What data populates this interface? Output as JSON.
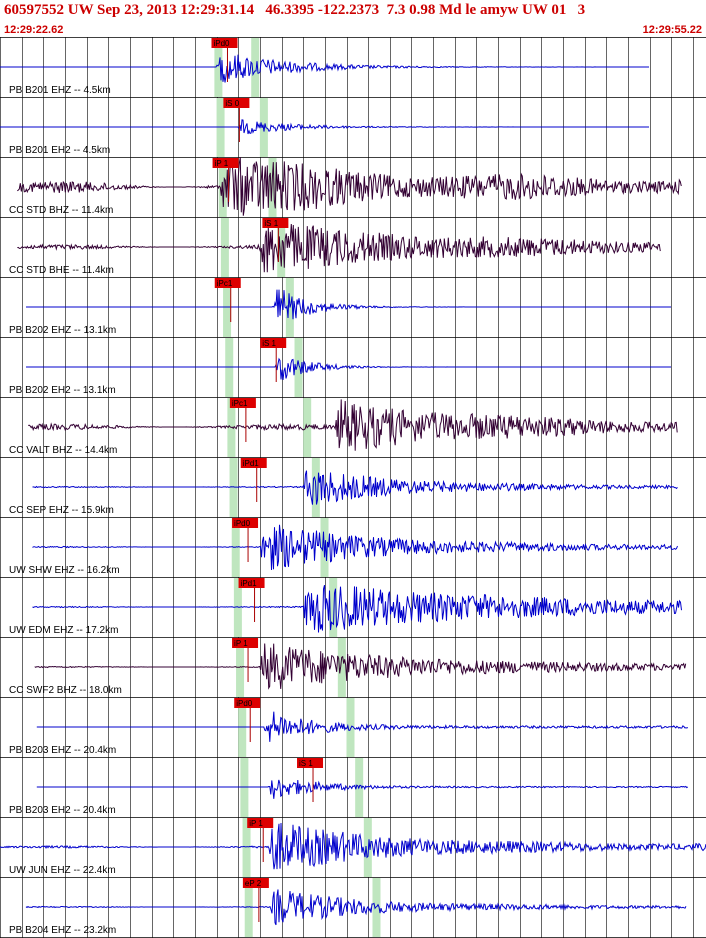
{
  "header": {
    "title": "60597552 UW Sep 23, 2013 12:29:31.14   46.3395 -122.2373  7.3 0.98 Md le amyw UW 01   3",
    "start_time": "12:29:22.62",
    "end_time": "12:29:55.22"
  },
  "colors": {
    "header_text": "#cc0000",
    "trace_blue": "#0000cc",
    "trace_dark": "#330033",
    "pick_marker": "#dd0000",
    "pick_line": "#aa0000",
    "predicted_band": "#bfe6bf",
    "grid": "#000000"
  },
  "chart_data": {
    "type": "line",
    "title": "60597552 UW Sep 23, 2013 12:29:31.14   46.3395 -122.2373  7.3 0.98 Md le amyw UW 01   3",
    "x_range": [
      "12:29:22.62",
      "12:29:55.22"
    ],
    "xlim_seconds": [
      0,
      32.6
    ],
    "grid": true,
    "channels": [
      {
        "label": "PB B201 EHZ -- 4.5km",
        "pick": "iPd0",
        "pick_time_s": 9.95,
        "trace_start_s": 0.0,
        "trace_end_s": 30.0,
        "color": "blue",
        "onset_s": 10.0,
        "amplitude": 0.3,
        "noise": 0.0,
        "decay": 3.0,
        "coda": 0.0
      },
      {
        "label": "PB B201 EH2 -- 4.5km",
        "pick": "iS 0",
        "pick_time_s": 10.5,
        "trace_start_s": 0.0,
        "trace_end_s": 30.0,
        "color": "blue",
        "onset_s": 11.0,
        "amplitude": 0.14,
        "noise": 0.0,
        "decay": 2.5,
        "coda": 0.0
      },
      {
        "label": "CC STD BHZ -- 11.4km",
        "pick": "iP 1",
        "pick_time_s": 10.0,
        "trace_start_s": 0.8,
        "trace_end_s": 31.5,
        "color": "dark",
        "onset_s": 10.2,
        "amplitude": 0.42,
        "noise": 0.1,
        "decay": 6.0,
        "coda": 0.08
      },
      {
        "label": "CC STD BHE -- 11.4km",
        "pick": "iS 1",
        "pick_time_s": 12.3,
        "trace_start_s": 0.8,
        "trace_end_s": 30.5,
        "color": "dark",
        "onset_s": 12.0,
        "amplitude": 0.38,
        "noise": 0.04,
        "decay": 7.0,
        "coda": 0.06
      },
      {
        "label": "PB B202 EHZ -- 13.1km",
        "pick": "iPc1",
        "pick_time_s": 10.1,
        "trace_start_s": 1.2,
        "trace_end_s": 31.0,
        "color": "blue",
        "onset_s": 12.6,
        "amplitude": 0.4,
        "noise": 0.0,
        "decay": 1.5,
        "coda": 0.0
      },
      {
        "label": "PB B202 EH2 -- 13.1km",
        "pick": "iS 1",
        "pick_time_s": 12.2,
        "trace_start_s": 1.2,
        "trace_end_s": 31.0,
        "color": "blue",
        "onset_s": 12.7,
        "amplitude": 0.3,
        "noise": 0.0,
        "decay": 1.4,
        "coda": 0.0
      },
      {
        "label": "CC VALT BHZ -- 14.4km",
        "pick": "iPc1",
        "pick_time_s": 10.8,
        "trace_start_s": 1.3,
        "trace_end_s": 31.3,
        "color": "dark",
        "onset_s": 15.5,
        "amplitude": 0.4,
        "noise": 0.05,
        "decay": 6.0,
        "coda": 0.05
      },
      {
        "label": "CC SEP EHZ -- 15.9km",
        "pick": "iPd1",
        "pick_time_s": 11.3,
        "trace_start_s": 1.5,
        "trace_end_s": 31.3,
        "color": "blue",
        "onset_s": 14.0,
        "amplitude": 0.34,
        "noise": 0.01,
        "decay": 4.0,
        "coda": 0.02
      },
      {
        "label": "UW SHW EHZ -- 16.2km",
        "pick": "iPd0",
        "pick_time_s": 10.9,
        "trace_start_s": 1.5,
        "trace_end_s": 31.3,
        "color": "blue",
        "onset_s": 12.0,
        "amplitude": 0.4,
        "noise": 0.01,
        "decay": 5.0,
        "coda": 0.03
      },
      {
        "label": "UW EDM EHZ -- 17.2km",
        "pick": "iPd1",
        "pick_time_s": 11.2,
        "trace_start_s": 1.5,
        "trace_end_s": 31.5,
        "color": "blue",
        "onset_s": 14.0,
        "amplitude": 0.4,
        "noise": 0.01,
        "decay": 8.0,
        "coda": 0.06
      },
      {
        "label": "CC SWF2 BHZ -- 18.0km",
        "pick": "iP 1",
        "pick_time_s": 10.9,
        "trace_start_s": 1.6,
        "trace_end_s": 31.7,
        "color": "dark",
        "onset_s": 12.0,
        "amplitude": 0.38,
        "noise": 0.01,
        "decay": 6.0,
        "coda": 0.04
      },
      {
        "label": "PB B203 EHZ -- 20.4km",
        "pick": "iPd0",
        "pick_time_s": 11.0,
        "trace_start_s": 1.7,
        "trace_end_s": 31.8,
        "color": "blue",
        "onset_s": 12.2,
        "amplitude": 0.3,
        "noise": 0.0,
        "decay": 2.0,
        "coda": 0.02
      },
      {
        "label": "PB B203 EH2 -- 20.4km",
        "pick": "iS 1",
        "pick_time_s": 13.9,
        "trace_start_s": 1.7,
        "trace_end_s": 31.8,
        "color": "blue",
        "onset_s": 12.4,
        "amplitude": 0.22,
        "noise": 0.0,
        "decay": 2.0,
        "coda": 0.01
      },
      {
        "label": "UW JUN EHZ -- 22.4km",
        "pick": "iP 1",
        "pick_time_s": 11.6,
        "trace_start_s": 0.0,
        "trace_end_s": 32.6,
        "color": "blue",
        "onset_s": 12.4,
        "amplitude": 0.4,
        "noise": 0.02,
        "decay": 5.0,
        "coda": 0.04
      },
      {
        "label": "PB B204 EHZ -- 23.2km",
        "pick": "eP 2",
        "pick_time_s": 11.4,
        "trace_start_s": 1.2,
        "trace_end_s": 31.7,
        "color": "blue",
        "onset_s": 12.5,
        "amplitude": 0.3,
        "noise": 0.01,
        "decay": 4.0,
        "coda": 0.02
      }
    ]
  }
}
